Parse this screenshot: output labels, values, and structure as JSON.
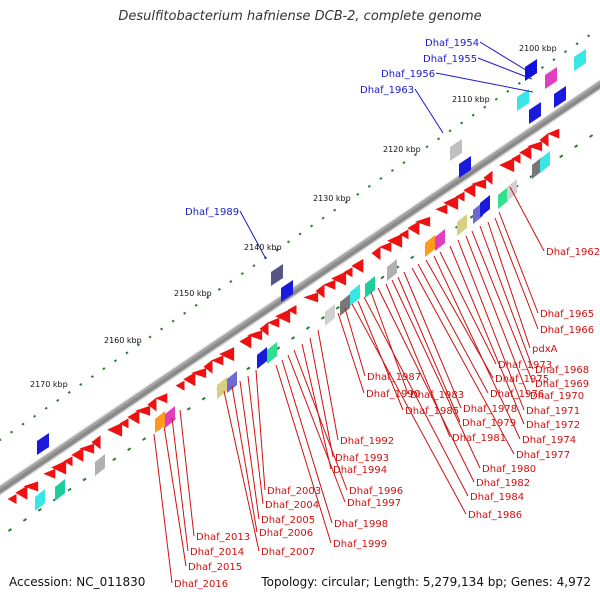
{
  "title": "Desulfitobacterium hafniense DCB-2, complete genome",
  "accession": "Accession: NC_011830",
  "summary": "Topology: circular; Length: 5,279,134 bp; Genes: 4,972",
  "colors": {
    "backbone": "#8a8a8a",
    "tick": "#2e7d32",
    "forward_label": "#1a1ad0",
    "reverse_label": "#d01010",
    "reverse_gene": "#ee1111",
    "forward_gene": "#1111dd"
  },
  "kbp_labels": [
    "2100 kbp",
    "2110 kbp",
    "2120 kbp",
    "2130 kbp",
    "2140 kbp",
    "2150 kbp",
    "2160 kbp",
    "2170 kbp"
  ],
  "forward_gene_labels": [
    "Dhaf_1954",
    "Dhaf_1955",
    "Dhaf_1956",
    "Dhaf_1963",
    "Dhaf_1989"
  ],
  "reverse_gene_labels": [
    "Dhaf_1962",
    "Dhaf_1965",
    "Dhaf_1966",
    "pdxA",
    "Dhaf_1968",
    "Dhaf_1969",
    "Dhaf_1970",
    "Dhaf_1971",
    "Dhaf_1972",
    "Dhaf_1973",
    "Dhaf_1974",
    "Dhaf_1975",
    "Dhaf_1976",
    "Dhaf_1977",
    "Dhaf_1978",
    "Dhaf_1979",
    "Dhaf_1980",
    "Dhaf_1981",
    "Dhaf_1982",
    "Dhaf_1983",
    "Dhaf_1984",
    "Dhaf_1985",
    "Dhaf_1986",
    "Dhaf_1987",
    "Dhaf_1990",
    "Dhaf_1992",
    "Dhaf_1993",
    "Dhaf_1994",
    "Dhaf_1996",
    "Dhaf_1997",
    "Dhaf_1998",
    "Dhaf_1999",
    "Dhaf_2003",
    "Dhaf_2004",
    "Dhaf_2005",
    "Dhaf_2006",
    "Dhaf_2007",
    "Dhaf_2013",
    "Dhaf_2014",
    "Dhaf_2015",
    "Dhaf_2016"
  ]
}
